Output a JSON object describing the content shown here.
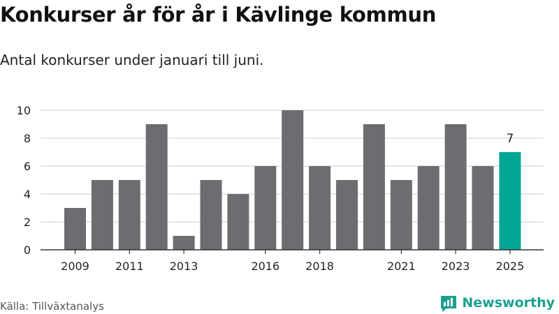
{
  "title": "Konkurser år för år i Kävlinge kommun",
  "subtitle": "Antal konkurser under januari till juni.",
  "source": "Källa: Tillväxtanalys",
  "brand": {
    "name": "Newsworthy",
    "icon": "newsworthy-logo-icon"
  },
  "colors": {
    "bar": "#6d6c71",
    "highlight": "#00a596",
    "grid": "#d8d8d8",
    "axis": "#333333",
    "text": "#222222"
  },
  "chart_data": {
    "type": "bar",
    "categories": [
      "2009",
      "2010",
      "2011",
      "2012",
      "2013",
      "2014",
      "2015",
      "2016",
      "2017",
      "2018",
      "2019",
      "2020",
      "2021",
      "2022",
      "2023",
      "2024",
      "2025"
    ],
    "x_tick_labels": [
      "2009",
      "2011",
      "2013",
      "2016",
      "2018",
      "2021",
      "2023",
      "2025"
    ],
    "values": [
      3,
      5,
      5,
      9,
      1,
      5,
      4,
      6,
      10,
      6,
      5,
      9,
      5,
      6,
      9,
      6,
      7
    ],
    "highlight_index": 16,
    "data_labels": [
      {
        "category": "2025",
        "text": "7"
      }
    ],
    "ylim": [
      0,
      10
    ],
    "yticks": [
      0,
      2,
      4,
      6,
      8,
      10
    ],
    "grid": true,
    "title": "Konkurser år för år i Kävlinge kommun",
    "xlabel": "",
    "ylabel": ""
  }
}
